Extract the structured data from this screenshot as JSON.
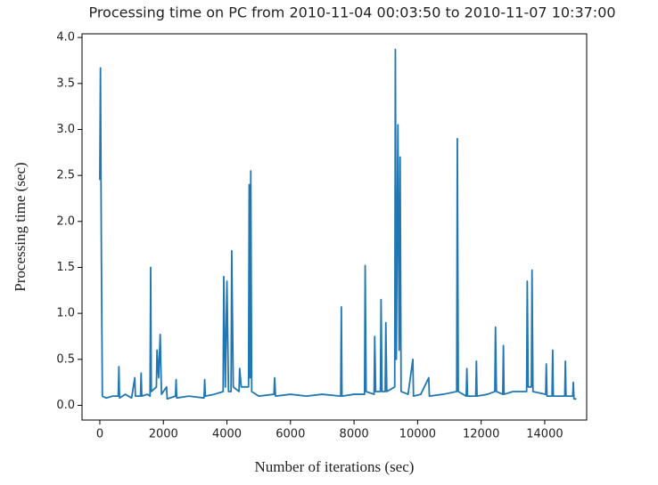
{
  "chart_data": {
    "type": "line",
    "title": "Processing time on PC from 2010-11-04 00:03:50 to 2010-11-07 10:37:00",
    "x_label": "Number of iterations (sec)",
    "y_label": "Processing time (sec)",
    "x": [
      0,
      20,
      50,
      80,
      200,
      400,
      580,
      600,
      620,
      800,
      1000,
      1100,
      1120,
      1280,
      1300,
      1320,
      1500,
      1580,
      1600,
      1620,
      1780,
      1800,
      1850,
      1900,
      1940,
      2100,
      2120,
      2380,
      2400,
      2420,
      2800,
      3280,
      3300,
      3320,
      3600,
      3880,
      3900,
      3950,
      4000,
      4050,
      4130,
      4150,
      4200,
      4380,
      4400,
      4450,
      4680,
      4700,
      4730,
      4750,
      4780,
      5000,
      5480,
      5500,
      5530,
      6000,
      6500,
      7000,
      7580,
      7600,
      7620,
      8000,
      8330,
      8350,
      8380,
      8630,
      8650,
      8680,
      8830,
      8850,
      8880,
      8980,
      9000,
      9030,
      9280,
      9300,
      9330,
      9380,
      9420,
      9450,
      9480,
      9700,
      9850,
      9870,
      10100,
      10350,
      10370,
      10800,
      11230,
      11250,
      11280,
      11530,
      11550,
      11570,
      11830,
      11850,
      11870,
      12200,
      12430,
      12450,
      12480,
      12680,
      12700,
      12720,
      13000,
      13430,
      13450,
      13480,
      13580,
      13600,
      13630,
      14030,
      14050,
      14070,
      14230,
      14250,
      14270,
      14630,
      14650,
      14670,
      14880,
      14900,
      14920,
      15000
    ],
    "series": [
      {
        "name": "processing-time",
        "color": "#1f77b4",
        "values": [
          2.45,
          3.67,
          1.58,
          0.1,
          0.08,
          0.1,
          0.1,
          0.42,
          0.08,
          0.12,
          0.08,
          0.3,
          0.1,
          0.1,
          0.35,
          0.1,
          0.12,
          0.1,
          1.5,
          0.15,
          0.2,
          0.6,
          0.3,
          0.77,
          0.12,
          0.2,
          0.07,
          0.1,
          0.28,
          0.08,
          0.1,
          0.08,
          0.28,
          0.1,
          0.12,
          0.15,
          1.4,
          0.2,
          1.35,
          0.15,
          0.15,
          1.68,
          0.2,
          0.15,
          0.4,
          0.2,
          0.2,
          2.4,
          0.3,
          2.55,
          0.15,
          0.1,
          0.12,
          0.3,
          0.1,
          0.12,
          0.1,
          0.12,
          0.1,
          1.07,
          0.1,
          0.12,
          0.12,
          1.52,
          0.15,
          0.12,
          0.75,
          0.15,
          0.15,
          1.15,
          0.15,
          0.15,
          0.9,
          0.15,
          0.2,
          3.87,
          0.5,
          3.05,
          0.6,
          2.7,
          0.15,
          0.12,
          0.5,
          0.1,
          0.12,
          0.3,
          0.1,
          0.12,
          0.15,
          2.9,
          0.15,
          0.1,
          0.4,
          0.1,
          0.1,
          0.48,
          0.1,
          0.12,
          0.15,
          0.85,
          0.15,
          0.12,
          0.65,
          0.12,
          0.15,
          0.15,
          1.35,
          0.2,
          0.2,
          1.47,
          0.15,
          0.12,
          0.45,
          0.1,
          0.1,
          0.6,
          0.1,
          0.1,
          0.48,
          0.1,
          0.1,
          0.25,
          0.07,
          0.07
        ]
      }
    ],
    "xlim": [
      -560,
      15320
    ],
    "ylim": [
      -0.16,
      4.04
    ],
    "xticks": [
      0,
      2000,
      4000,
      6000,
      8000,
      10000,
      12000,
      14000
    ],
    "yticks": [
      {
        "value": 0,
        "label": "0.0"
      },
      {
        "value": 0.5,
        "label": "0.5"
      },
      {
        "value": 1,
        "label": "1.0"
      },
      {
        "value": 1.5,
        "label": "1.5"
      },
      {
        "value": 2,
        "label": "2.0"
      },
      {
        "value": 2.5,
        "label": "2.5"
      },
      {
        "value": 3,
        "label": "3.0"
      },
      {
        "value": 3.5,
        "label": "3.5"
      },
      {
        "value": 4,
        "label": "4.0"
      }
    ],
    "grid": false
  }
}
